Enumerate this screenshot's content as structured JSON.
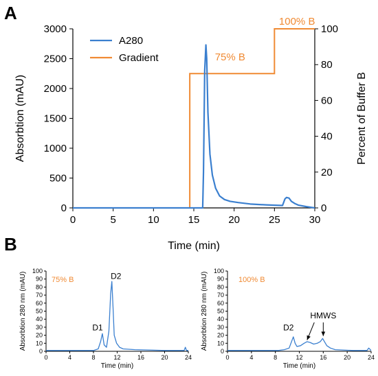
{
  "colors": {
    "a280": "#3a7fcf",
    "gradient": "#f08a33",
    "condition_text": "#f08a33",
    "axis": "#000000"
  },
  "panel_a_letter": "A",
  "panel_b_letter": "B",
  "chart_data": [
    {
      "id": "A",
      "type": "line",
      "xlabel": "Time (min)",
      "ylabel": "Absorbtion (mAU)",
      "y2label": "Percent of Buffer B",
      "xlim": [
        0,
        30
      ],
      "ylim": [
        0,
        3000
      ],
      "y2lim": [
        0,
        100
      ],
      "xticks": [
        0,
        5,
        10,
        15,
        20,
        25,
        30
      ],
      "yticks": [
        0,
        500,
        1000,
        1500,
        2000,
        2500,
        3000
      ],
      "y2ticks": [
        0,
        20,
        40,
        60,
        80,
        100
      ],
      "grid": false,
      "legend_position": "top-left",
      "annotations": [
        {
          "text": "75% B",
          "x": 19.5,
          "y2": 80
        },
        {
          "text": "100% B",
          "x": 27.8,
          "y2": 100
        }
      ],
      "series": [
        {
          "name": "A280",
          "axis": "left",
          "x": [
            0,
            16.1,
            16.2,
            16.35,
            16.5,
            16.6,
            16.75,
            17.0,
            17.3,
            17.7,
            18.2,
            18.8,
            19.5,
            20.5,
            22.0,
            24.0,
            26.0,
            26.3,
            26.5,
            26.8,
            27.1,
            27.5,
            28.0,
            29.0,
            30.0
          ],
          "y": [
            0,
            0,
            600,
            2300,
            2730,
            2500,
            1600,
            900,
            550,
            330,
            200,
            140,
            110,
            90,
            65,
            50,
            40,
            150,
            175,
            165,
            110,
            75,
            45,
            20,
            0
          ]
        },
        {
          "name": "Gradient",
          "axis": "right",
          "x": [
            0,
            14.5,
            14.5,
            25.0,
            25.0,
            30.0
          ],
          "y": [
            0,
            0,
            75,
            75,
            100,
            100
          ]
        }
      ]
    },
    {
      "id": "B-left",
      "type": "line",
      "condition": "75% B",
      "xlabel": "Time (min)",
      "ylabel": "Absorbtion 280 nm (mAU)",
      "xlim": [
        0,
        24
      ],
      "ylim": [
        0,
        100
      ],
      "xticks": [
        0,
        4,
        8,
        12,
        16,
        20,
        24
      ],
      "yticks": [
        0,
        10,
        20,
        30,
        40,
        50,
        60,
        70,
        80,
        90,
        100
      ],
      "annotations": [
        {
          "text": "D1",
          "x": 8.7,
          "y": 26
        },
        {
          "text": "D2",
          "x": 11.8,
          "y": 90
        }
      ],
      "series": [
        {
          "x": [
            0,
            8.0,
            8.8,
            9.2,
            9.5,
            9.8,
            10.2,
            10.6,
            10.9,
            11.1,
            11.3,
            11.5,
            11.9,
            12.4,
            13.0,
            15.0,
            20.0,
            23.3,
            23.5,
            23.7,
            24.0
          ],
          "y": [
            1,
            1,
            3,
            12,
            22,
            8,
            5,
            25,
            72,
            87,
            55,
            20,
            10,
            5,
            3,
            2,
            1,
            1,
            5,
            1,
            1
          ]
        }
      ]
    },
    {
      "id": "B-right",
      "type": "line",
      "condition": "100% B",
      "xlabel": "Time (min)",
      "ylabel": "Absorbtion 280 nm (mAU)",
      "xlim": [
        0,
        24
      ],
      "ylim": [
        0,
        100
      ],
      "xticks": [
        0,
        4,
        8,
        12,
        16,
        20,
        24
      ],
      "yticks": [
        0,
        10,
        20,
        30,
        40,
        50,
        60,
        70,
        80,
        90,
        100
      ],
      "annotations": [
        {
          "text": "D2",
          "x": 10.2,
          "y": 26
        },
        {
          "text": "HMWS",
          "x": 16.0,
          "y": 41
        },
        {
          "arrow_from": [
            14.5,
            36
          ],
          "arrow_to": [
            13.3,
            14
          ]
        },
        {
          "arrow_from": [
            16.0,
            36
          ],
          "arrow_to": [
            16.0,
            19
          ]
        }
      ],
      "series": [
        {
          "x": [
            0,
            8.5,
            9.5,
            10.3,
            10.7,
            11.0,
            11.3,
            11.6,
            12.2,
            12.8,
            13.3,
            13.8,
            14.4,
            15.0,
            15.5,
            15.9,
            16.2,
            16.6,
            17.2,
            18.0,
            19.5,
            21.0,
            23.3,
            23.6,
            24.0
          ],
          "y": [
            1,
            1,
            2,
            4,
            12,
            18,
            10,
            6,
            7,
            10,
            12,
            11,
            9,
            10,
            12,
            16,
            12,
            7,
            4,
            2,
            1.5,
            1,
            1,
            4,
            1
          ]
        }
      ]
    }
  ]
}
